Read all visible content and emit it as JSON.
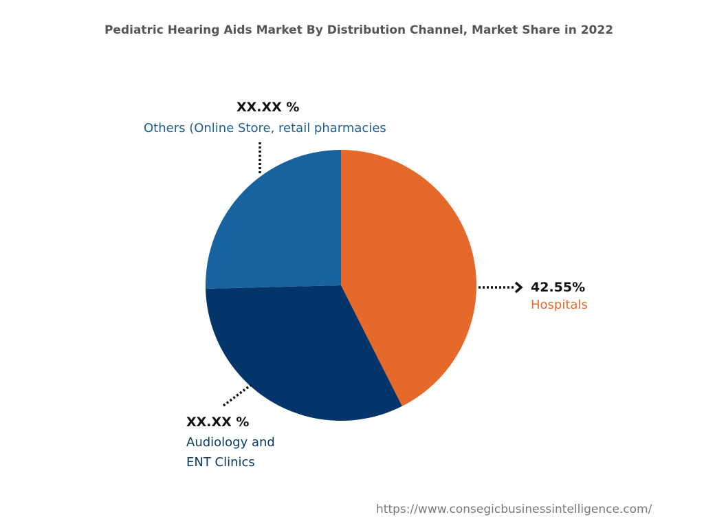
{
  "chart_data": {
    "type": "pie",
    "title": "Pediatric Hearing Aids Market By Distribution Channel, Market Share in 2022",
    "slices": [
      {
        "label": "Hospitals",
        "value": 42.55,
        "display": "42.55%",
        "color": "#E5692A"
      },
      {
        "label": "Audiology and ENT Clinics",
        "value": 32.05,
        "display": "XX.XX %",
        "color": "#03346A"
      },
      {
        "label": "Others (Online Store, retail pharmacies",
        "value": 25.4,
        "display": "XX.XX %",
        "color": "#18639E"
      }
    ],
    "start": "top, clockwise",
    "legend": "none"
  },
  "labels": {
    "hospitals_value": "42.55%",
    "hospitals_name": "Hospitals",
    "audiology_value": "XX.XX %",
    "audiology_line1": "Audiology and",
    "audiology_line2": "ENT Clinics",
    "others_value": "XX.XX %",
    "others_name": "Others (Online Store, retail pharmacies"
  },
  "source": "https://www.consegicbusinessintelligence.com/"
}
